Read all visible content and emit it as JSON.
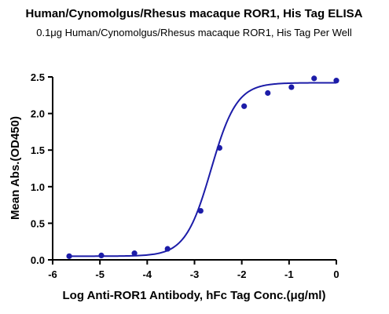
{
  "chart_data": {
    "type": "scatter",
    "title": "Human/Cynomolgus/Rhesus macaque ROR1, His Tag ELISA",
    "subtitle": "0.1μg Human/Cynomolgus/Rhesus macaque ROR1, His Tag Per Well",
    "xlabel": "Log Anti-ROR1 Antibody, hFc Tag Conc.(μg/ml)",
    "ylabel": "Mean Abs.(OD450)",
    "xlim": [
      -6,
      0
    ],
    "ylim": [
      0,
      2.5
    ],
    "x_ticks": [
      -6,
      -5,
      -4,
      -3,
      -2,
      -1,
      0
    ],
    "y_ticks": [
      0.0,
      0.5,
      1.0,
      1.5,
      2.0,
      2.5
    ],
    "x_tick_labels": [
      "-6",
      "-5",
      "-4",
      "-3",
      "-2",
      "-1",
      "0"
    ],
    "y_tick_labels": [
      "0.0",
      "0.5",
      "1.0",
      "1.5",
      "2.0",
      "2.5"
    ],
    "grid": false,
    "color": "#1c1ca8",
    "series": [
      {
        "points": [
          {
            "x": -5.65,
            "y": 0.05
          },
          {
            "x": -4.97,
            "y": 0.06
          },
          {
            "x": -4.27,
            "y": 0.09
          },
          {
            "x": -3.57,
            "y": 0.15
          },
          {
            "x": -2.87,
            "y": 0.67
          },
          {
            "x": -2.47,
            "y": 1.53
          },
          {
            "x": -1.95,
            "y": 2.1
          },
          {
            "x": -1.45,
            "y": 2.28
          },
          {
            "x": -0.95,
            "y": 2.36
          },
          {
            "x": -0.47,
            "y": 2.48
          },
          {
            "x": 0.0,
            "y": 2.45
          }
        ],
        "fit_curve": {
          "model": "4PL",
          "bottom": 0.05,
          "top": 2.42,
          "log_ec50": -2.65,
          "hill_slope": 1.6
        }
      }
    ]
  }
}
